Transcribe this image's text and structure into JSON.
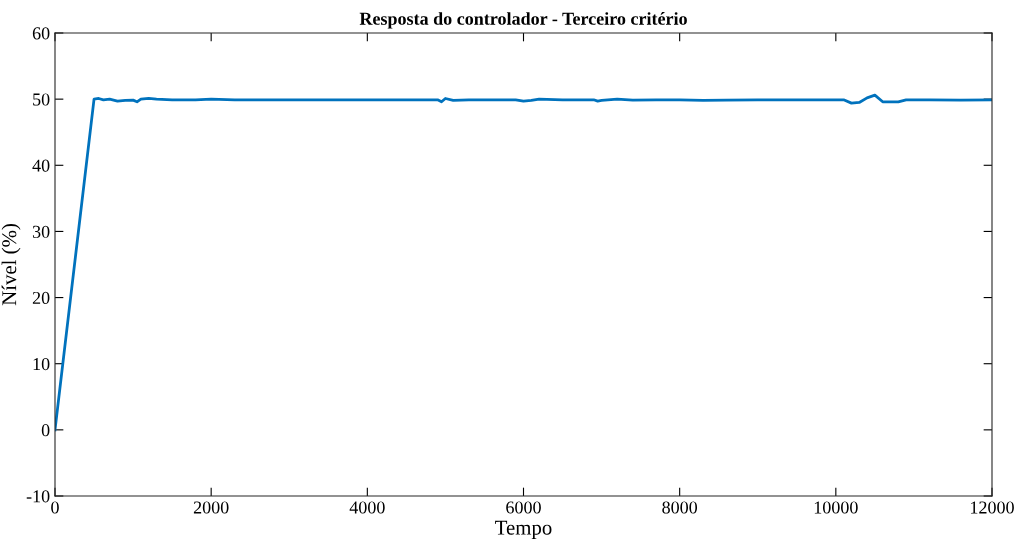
{
  "chart_data": {
    "type": "line",
    "title": "Resposta do controlador - Terceiro critério",
    "xlabel": "Tempo",
    "ylabel": "Nível (%)",
    "xlim": [
      0,
      12000
    ],
    "ylim": [
      -10,
      60
    ],
    "xticks": [
      0,
      2000,
      4000,
      6000,
      8000,
      10000,
      12000
    ],
    "yticks": [
      -10,
      0,
      10,
      20,
      30,
      40,
      50,
      60
    ],
    "grid": false,
    "series": [
      {
        "color": "#0072bd",
        "x": [
          0,
          500,
          560,
          620,
          700,
          800,
          900,
          1000,
          1050,
          1100,
          1200,
          1300,
          1500,
          1800,
          2000,
          2300,
          2600,
          3000,
          3500,
          4000,
          4500,
          4900,
          4950,
          5000,
          5100,
          5300,
          5600,
          5900,
          6000,
          6100,
          6200,
          6500,
          6900,
          6950,
          7000,
          7200,
          7400,
          7700,
          8000,
          8300,
          8600,
          9000,
          9400,
          9800,
          10100,
          10200,
          10300,
          10400,
          10500,
          10600,
          10800,
          10900,
          11200,
          11600,
          12000
        ],
        "values": [
          0,
          50.0,
          50.1,
          49.9,
          50.0,
          49.7,
          49.8,
          49.85,
          49.6,
          50.0,
          50.1,
          50.0,
          49.9,
          49.9,
          50.0,
          49.9,
          49.9,
          49.9,
          49.9,
          49.9,
          49.9,
          49.9,
          49.6,
          50.1,
          49.8,
          49.9,
          49.9,
          49.9,
          49.7,
          49.8,
          50.0,
          49.9,
          49.9,
          49.7,
          49.8,
          50.0,
          49.85,
          49.9,
          49.9,
          49.8,
          49.85,
          49.9,
          49.9,
          49.9,
          49.9,
          49.4,
          49.5,
          50.2,
          50.6,
          49.6,
          49.6,
          49.9,
          49.9,
          49.85,
          49.9
        ]
      }
    ]
  }
}
